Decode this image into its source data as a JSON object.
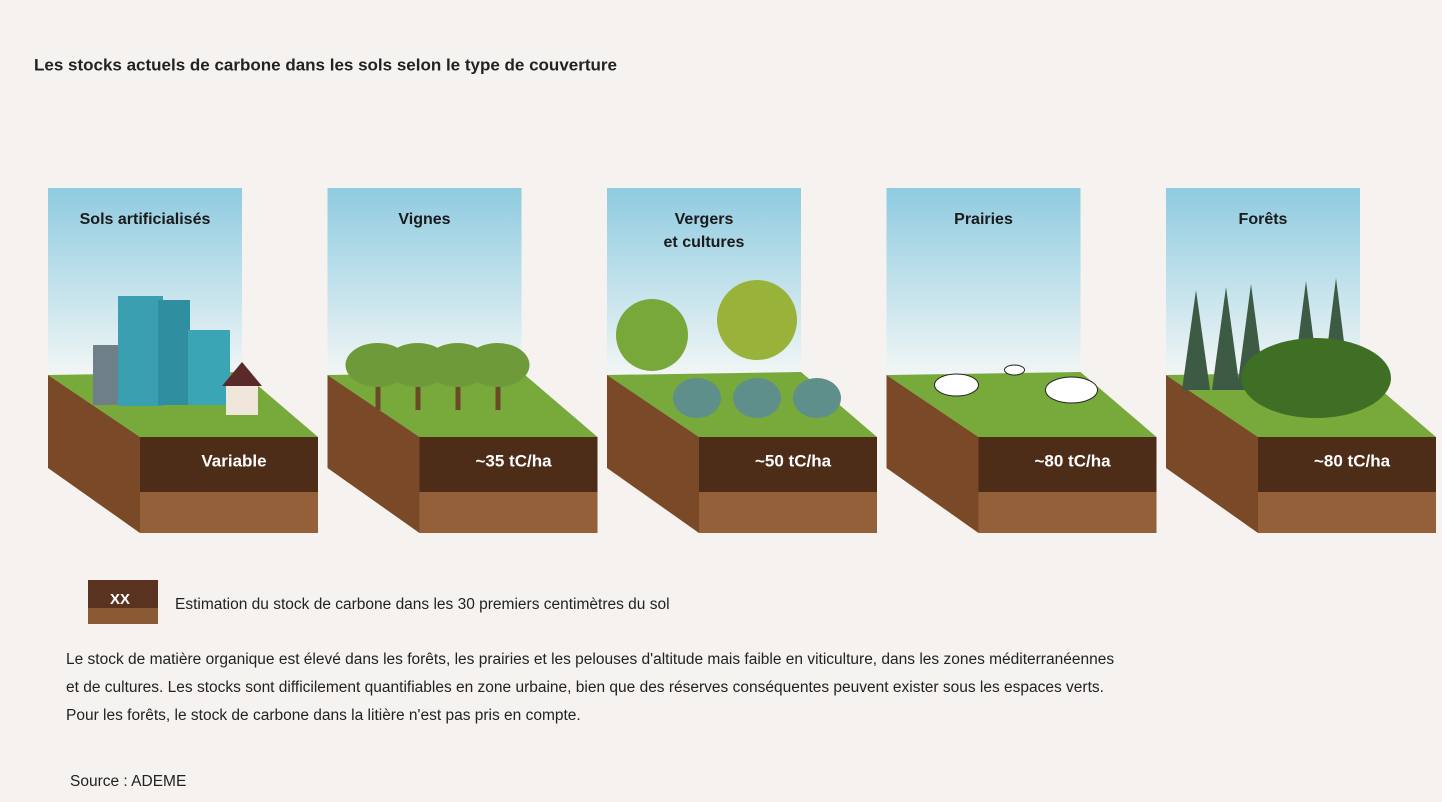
{
  "title": "Les stocks actuels de carbone dans les sols selon le type de couverture",
  "panels": [
    {
      "label": [
        "Sols artificialisés"
      ],
      "value": "Variable"
    },
    {
      "label": [
        "Vignes"
      ],
      "value": "~35 tC/ha"
    },
    {
      "label": [
        "Vergers",
        "et cultures"
      ],
      "value": "~50 tC/ha"
    },
    {
      "label": [
        "Prairies"
      ],
      "value": "~80 tC/ha"
    },
    {
      "label": [
        "Forêts"
      ],
      "value": "~80 tC/ha"
    }
  ],
  "legend": {
    "swatch_label": "XX",
    "text": "Estimation du stock de carbone dans les 30 premiers centimètres du sol"
  },
  "description": [
    "Le stock de matière organique est élevé dans les forêts, les prairies et les pelouses d'altitude mais faible en viticulture, dans les zones méditerranéennes",
    "et de cultures. Les stocks sont difficilement quantifiables en zone urbaine, bien que des réserves conséquentes peuvent exister sous les espaces verts.",
    "Pour les forêts, le stock de carbone dans la litière n'est pas pris en compte."
  ],
  "source": "Source : ADEME"
}
